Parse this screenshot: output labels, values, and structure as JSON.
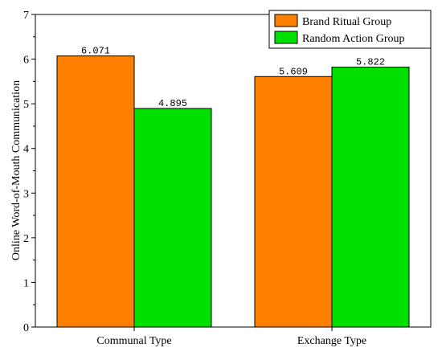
{
  "chart_data": {
    "type": "bar",
    "categories": [
      "Communal Type",
      "Exchange Type"
    ],
    "series": [
      {
        "name": "Brand Ritual Group",
        "values": [
          6.071,
          5.609
        ],
        "labels": [
          "6.071",
          "5.609"
        ],
        "color": "#FF8000"
      },
      {
        "name": "Random Action Group",
        "values": [
          4.895,
          5.822
        ],
        "labels": [
          "4.895",
          "5.822"
        ],
        "color": "#00E000"
      }
    ],
    "title": "",
    "xlabel": "",
    "ylabel": "Online Word-of-Mouth Communication",
    "ylim": [
      0,
      7
    ],
    "yticks": [
      0,
      1,
      2,
      3,
      4,
      5,
      6,
      7
    ],
    "grid": false,
    "legend_position": "top-right"
  }
}
